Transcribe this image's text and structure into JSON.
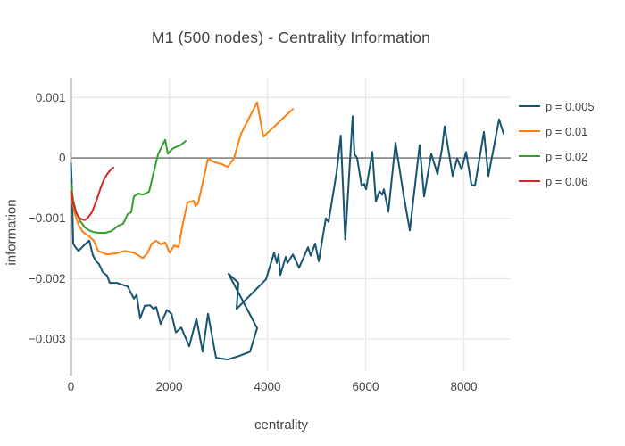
{
  "title": "M1 (500 nodes) - Centrality Information",
  "chart_data": {
    "type": "line",
    "title": "M1 (500 nodes) - Centrality Information",
    "xlabel": "centrality",
    "ylabel": "information",
    "xlim": [
      0,
      8954
    ],
    "ylim": [
      -0.003545,
      0.001315
    ],
    "x_tick_values": [
      0,
      2000,
      4000,
      6000,
      8000
    ],
    "x_tick_labels": [
      "0",
      "2000",
      "4000",
      "6000",
      "8000"
    ],
    "y_tick_values": [
      0.001,
      0,
      -0.001,
      -0.002,
      -0.003
    ],
    "y_tick_labels": [
      "0.001",
      "0",
      "−0.001",
      "−0.002",
      "−0.003"
    ],
    "grid": true,
    "zero_line": true,
    "legend_position": "right",
    "series": [
      {
        "name": "p = 0.005",
        "color": "#17546d",
        "points": [
          [
            0,
            -9e-05
          ],
          [
            20,
            -0.0005
          ],
          [
            45,
            -0.00142
          ],
          [
            100,
            -0.00149
          ],
          [
            155,
            -0.00154
          ],
          [
            227,
            -0.00148
          ],
          [
            300,
            -0.00142
          ],
          [
            373,
            -0.00137
          ],
          [
            445,
            -0.00161
          ],
          [
            500,
            -0.0017
          ],
          [
            573,
            -0.00176
          ],
          [
            645,
            -0.00189
          ],
          [
            736,
            -0.00195
          ],
          [
            791,
            -0.00207
          ],
          [
            936,
            -0.00207
          ],
          [
            1045,
            -0.0021
          ],
          [
            1155,
            -0.00213
          ],
          [
            1282,
            -0.00233
          ],
          [
            1336,
            -0.00227
          ],
          [
            1409,
            -0.00266
          ],
          [
            1500,
            -0.00245
          ],
          [
            1609,
            -0.00244
          ],
          [
            1682,
            -0.0025
          ],
          [
            1736,
            -0.00247
          ],
          [
            1827,
            -0.00275
          ],
          [
            1954,
            -0.00252
          ],
          [
            2045,
            -0.00258
          ],
          [
            2136,
            -0.00289
          ],
          [
            2245,
            -0.00281
          ],
          [
            2409,
            -0.00312
          ],
          [
            2554,
            -0.00266
          ],
          [
            2682,
            -0.00321
          ],
          [
            2791,
            -0.00258
          ],
          [
            2954,
            -0.00331
          ],
          [
            3191,
            -0.00334
          ],
          [
            3427,
            -0.00328
          ],
          [
            3645,
            -0.00321
          ],
          [
            3791,
            -0.00282
          ],
          [
            3209,
            -0.00192
          ],
          [
            3409,
            -0.00207
          ],
          [
            3373,
            -0.0025
          ],
          [
            3972,
            -0.00201
          ],
          [
            4136,
            -0.00157
          ],
          [
            4191,
            -0.00174
          ],
          [
            4227,
            -0.0016
          ],
          [
            4263,
            -0.00194
          ],
          [
            4373,
            -0.00164
          ],
          [
            4409,
            -0.00174
          ],
          [
            4518,
            -0.0016
          ],
          [
            4645,
            -0.00182
          ],
          [
            4827,
            -0.00148
          ],
          [
            4882,
            -0.00162
          ],
          [
            4973,
            -0.00142
          ],
          [
            5045,
            -0.00171
          ],
          [
            5191,
            -0.001
          ],
          [
            5245,
            -0.00106
          ],
          [
            5409,
            -0.00024
          ],
          [
            5495,
            0.00037
          ],
          [
            5586,
            -0.00135
          ],
          [
            5736,
            0.00069
          ],
          [
            5772,
            6e-05
          ],
          [
            5827,
            0.0
          ],
          [
            5918,
            -0.00046
          ],
          [
            5972,
            -0.00043
          ],
          [
            6009,
            -0.00052
          ],
          [
            6136,
            0.0001
          ],
          [
            6209,
            -0.00072
          ],
          [
            6282,
            -0.00055
          ],
          [
            6336,
            -0.00061
          ],
          [
            6372,
            -0.00052
          ],
          [
            6463,
            -0.00089
          ],
          [
            6609,
            0.00025
          ],
          [
            6772,
            -0.00061
          ],
          [
            6900,
            -0.0012
          ],
          [
            7100,
            0.00021
          ],
          [
            7191,
            -0.00064
          ],
          [
            7336,
            7e-05
          ],
          [
            7464,
            -0.00027
          ],
          [
            7554,
            0.00015
          ],
          [
            7609,
            0.00052
          ],
          [
            7772,
            -0.0003
          ],
          [
            7863,
            -1e-05
          ],
          [
            7954,
            -0.00019
          ],
          [
            8045,
            0.0001
          ],
          [
            8154,
            -0.00044
          ],
          [
            8227,
            -0.00046
          ],
          [
            8409,
            0.00043
          ],
          [
            8500,
            -0.0003
          ],
          [
            8718,
            0.00064
          ],
          [
            8809,
            0.0004
          ]
        ]
      },
      {
        "name": "p = 0.01",
        "color": "#ff7f0e",
        "points": [
          [
            9,
            -0.00066
          ],
          [
            82,
            -0.00093
          ],
          [
            155,
            -0.00111
          ],
          [
            245,
            -0.00123
          ],
          [
            373,
            -0.0013
          ],
          [
            464,
            -0.00137
          ],
          [
            555,
            -0.00154
          ],
          [
            736,
            -0.0016
          ],
          [
            918,
            -0.00158
          ],
          [
            1100,
            -0.00154
          ],
          [
            1282,
            -0.00157
          ],
          [
            1464,
            -0.00166
          ],
          [
            1555,
            -0.00158
          ],
          [
            1645,
            -0.00142
          ],
          [
            1736,
            -0.00137
          ],
          [
            1827,
            -0.00143
          ],
          [
            1918,
            -0.0014
          ],
          [
            2009,
            -0.00157
          ],
          [
            2100,
            -0.00145
          ],
          [
            2191,
            -0.00148
          ],
          [
            2263,
            -0.00115
          ],
          [
            2373,
            -0.00074
          ],
          [
            2500,
            -0.00071
          ],
          [
            2536,
            -0.0008
          ],
          [
            2591,
            -0.00075
          ],
          [
            2791,
            -1e-05
          ],
          [
            2918,
            -7e-05
          ],
          [
            3064,
            -0.0001
          ],
          [
            3191,
            -0.00015
          ],
          [
            3318,
            -1e-05
          ],
          [
            3464,
            0.0004
          ],
          [
            3791,
            0.00092
          ],
          [
            3918,
            0.00035
          ],
          [
            4518,
            0.00081
          ]
        ]
      },
      {
        "name": "p = 0.02",
        "color": "#33a02c",
        "points": [
          [
            4,
            -0.00044
          ],
          [
            45,
            -0.0007
          ],
          [
            100,
            -0.00089
          ],
          [
            191,
            -0.00105
          ],
          [
            282,
            -0.00115
          ],
          [
            373,
            -0.0012
          ],
          [
            464,
            -0.00123
          ],
          [
            555,
            -0.00124
          ],
          [
            700,
            -0.00124
          ],
          [
            827,
            -0.00121
          ],
          [
            973,
            -0.00112
          ],
          [
            1064,
            -0.00109
          ],
          [
            1155,
            -0.00093
          ],
          [
            1227,
            -0.0009
          ],
          [
            1282,
            -0.00064
          ],
          [
            1373,
            -0.00059
          ],
          [
            1464,
            -0.00061
          ],
          [
            1591,
            -0.00056
          ],
          [
            1773,
            6e-05
          ],
          [
            1918,
            0.0003
          ],
          [
            1973,
            7e-05
          ],
          [
            2064,
            0.00015
          ],
          [
            2136,
            0.00018
          ],
          [
            2227,
            0.00021
          ],
          [
            2336,
            0.00028
          ]
        ]
      },
      {
        "name": "p = 0.06",
        "color": "#d62728",
        "points": [
          [
            4,
            -0.00056
          ],
          [
            45,
            -0.00075
          ],
          [
            100,
            -0.00089
          ],
          [
            155,
            -0.00098
          ],
          [
            227,
            -0.00102
          ],
          [
            282,
            -0.00103
          ],
          [
            336,
            -0.001
          ],
          [
            427,
            -0.0009
          ],
          [
            518,
            -0.00071
          ],
          [
            591,
            -0.00053
          ],
          [
            664,
            -0.00037
          ],
          [
            736,
            -0.00027
          ],
          [
            827,
            -0.00018
          ],
          [
            864,
            -0.00016
          ]
        ]
      }
    ]
  }
}
